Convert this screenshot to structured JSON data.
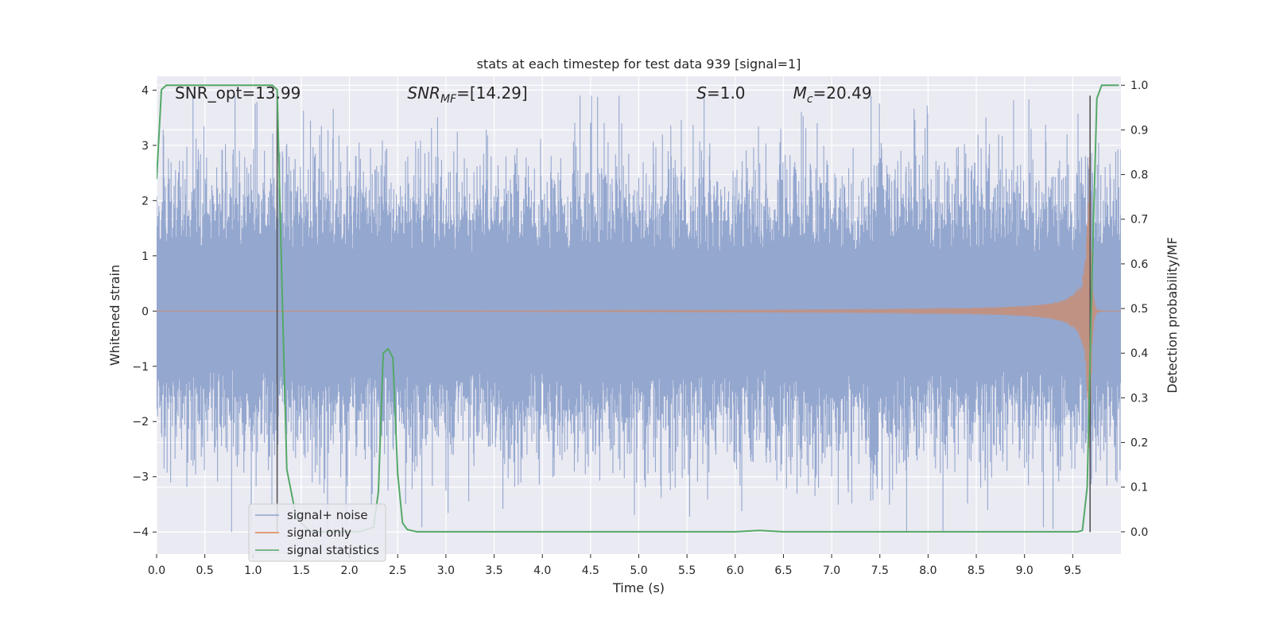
{
  "chart_data": {
    "type": "line",
    "title": "stats at each timestep for test data 939 [signal=1]",
    "xlabel": "Time (s)",
    "ylabel": "Whitened strain",
    "ylabel_right": "Detection probability/MF",
    "xlim": [
      0.0,
      10.0
    ],
    "ylim": [
      -4.4,
      4.25
    ],
    "ylim_right": [
      -0.05,
      1.02
    ],
    "x_ticks": [
      "0.0",
      "0.5",
      "1.0",
      "1.5",
      "2.0",
      "2.5",
      "3.0",
      "3.5",
      "4.0",
      "4.5",
      "5.0",
      "5.5",
      "6.0",
      "6.5",
      "7.0",
      "7.5",
      "8.0",
      "8.5",
      "9.0",
      "9.5"
    ],
    "y_ticks": [
      "4",
      "3",
      "2",
      "1",
      "0",
      "−1",
      "−2",
      "−3",
      "−4"
    ],
    "y_ticks_right": [
      "1.0",
      "0.9",
      "0.8",
      "0.7",
      "0.6",
      "0.5",
      "0.4",
      "0.3",
      "0.2",
      "0.1",
      "0.0"
    ],
    "grid": true,
    "legend_position": "lower-left",
    "annotations": {
      "snr_opt": "SNR_opt=13.99",
      "snr_mf_label": "SNR",
      "snr_mf_sub": "MF",
      "snr_mf_value": "=[14.29]",
      "s_label": "S",
      "s_value": "=1.0",
      "mc_label": "M",
      "mc_sub": "c",
      "mc_value": "=20.49"
    },
    "vertical_lines": [
      1.25,
      9.68
    ],
    "series": [
      {
        "name": "signal+ noise",
        "color": "#8fa3cc",
        "description": "whitened noisy strain, amplitude typically within -2 to 2 with spikes to about ±3.9",
        "envelope": {
          "typical": 1.9,
          "peak_max": 3.9,
          "peak_min": -4.0
        }
      },
      {
        "name": "signal only",
        "color": "#dd8452",
        "description": "chirp waveform, amplitude growing toward merger near t=9.65 s",
        "chirp": {
          "amplitude_at_5s": 0.05,
          "amplitude_at_9s": 0.25,
          "amplitude_peak": 2.8,
          "merger_time": 9.68
        }
      },
      {
        "name": "signal statistics",
        "color": "#55a868",
        "axis": "right",
        "x": [
          0.0,
          0.05,
          0.1,
          0.3,
          0.5,
          1.0,
          1.15,
          1.2,
          1.25,
          1.3,
          1.35,
          1.45,
          1.6,
          1.8,
          2.0,
          2.1,
          2.25,
          2.3,
          2.35,
          2.4,
          2.45,
          2.5,
          2.55,
          2.6,
          2.7,
          3.0,
          4.0,
          5.0,
          6.0,
          6.25,
          6.5,
          7.0,
          8.0,
          9.0,
          9.5,
          9.55,
          9.6,
          9.65,
          9.7,
          9.75,
          9.8,
          9.85,
          9.9,
          9.95,
          9.98
        ],
        "y": [
          0.79,
          0.99,
          1.0,
          1.0,
          1.0,
          1.0,
          1.0,
          1.0,
          0.99,
          0.55,
          0.14,
          0.03,
          0.0,
          0.0,
          0.0,
          0.0,
          0.01,
          0.09,
          0.4,
          0.41,
          0.39,
          0.13,
          0.02,
          0.005,
          0.0,
          0.0,
          0.0,
          0.0,
          0.0,
          0.003,
          0.0,
          0.0,
          0.0,
          0.0,
          0.0,
          0.0,
          0.003,
          0.1,
          0.57,
          0.97,
          1.0,
          1.0,
          1.0,
          1.0,
          1.0
        ]
      }
    ]
  }
}
